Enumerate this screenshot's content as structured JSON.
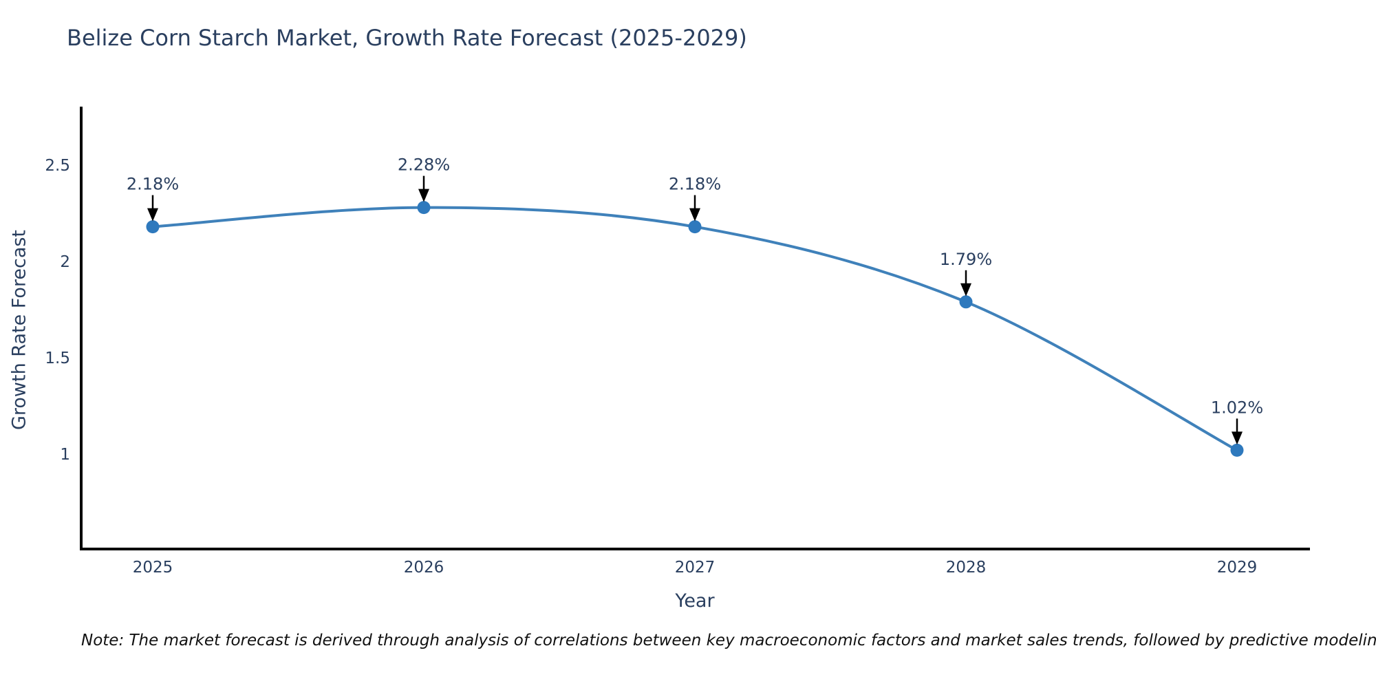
{
  "header": {
    "title": "Belize Corn Starch Market, Growth Rate Forecast (2025-2029)"
  },
  "chart_data": {
    "type": "line",
    "title": "Belize Corn Starch Market, Growth Rate Forecast (2025-2029)",
    "x": [
      2025,
      2026,
      2027,
      2028,
      2029
    ],
    "y": [
      2.18,
      2.28,
      2.18,
      1.79,
      1.02
    ],
    "point_labels": [
      "2.18%",
      "2.28%",
      "2.18%",
      "1.79%",
      "1.02%"
    ],
    "xlabel": "Year",
    "ylabel": "Growth Rate Forecast",
    "xticks": [
      "2025",
      "2026",
      "2027",
      "2028",
      "2029"
    ],
    "yticks": [
      "2.5",
      "2",
      "1.5",
      "1"
    ],
    "ytick_values": [
      2.5,
      2.0,
      1.5,
      1.0
    ],
    "ylim": [
      0.5,
      2.8
    ],
    "grid": false,
    "legend_position": "none",
    "line_shape": "spline",
    "annotations_have_arrows": true,
    "colors": {
      "line": "#3f81ba",
      "marker": "#2e79bd",
      "axis_text": "#2a3f5f",
      "annotation_text": "#2a3f5f",
      "arrow": "#000000",
      "spine": "#000000"
    }
  },
  "footer": {
    "note": "Note: The market forecast is derived through analysis of correlations between key macroeconomic factors and market sales trends, followed by predictive modeling to project future sales"
  }
}
